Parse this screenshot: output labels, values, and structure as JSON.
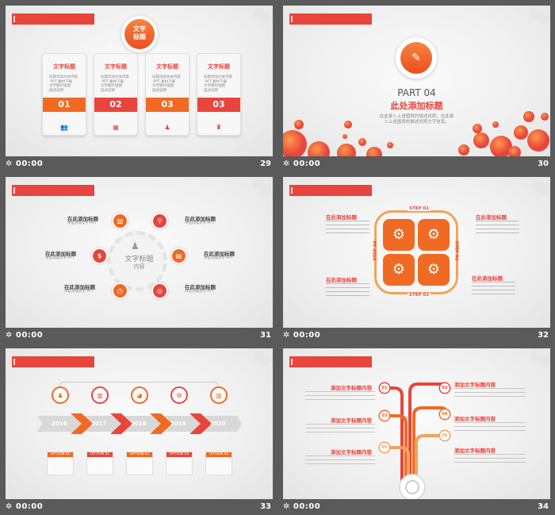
{
  "slides": [
    {
      "number": "29",
      "time": "00:00",
      "center_title": "文字\n标题",
      "cards": [
        {
          "title": "文字标题",
          "desc": "标题添加文本内容\n PPT 素材下载\n文字图片插图\n描述说明",
          "num": "01",
          "color": "#f06a24"
        },
        {
          "title": "文字标题",
          "desc": "标题添加文本内容\n PPT 素材下载\n文字图片插图\n描述说明",
          "num": "02",
          "color": "#e8453c"
        },
        {
          "title": "文字标题",
          "desc": "标题添加文本内容\n PPT 素材下载\n文字图片插图\n描述说明",
          "num": "03",
          "color": "#f06a24"
        },
        {
          "title": "文字标题",
          "desc": "标题添加文本内容\n PPT 素材下载\n文字图片插图\n描述说明",
          "num": "03",
          "color": "#e8453c"
        }
      ]
    },
    {
      "number": "30",
      "time": "00:00",
      "part": "PART 04",
      "heading": "此处添加标题",
      "desc1": "在此录入上述图表的描述说明，在此录",
      "desc2": "入上述图表的描述说明文字信息。"
    },
    {
      "number": "31",
      "time": "00:00",
      "center_title": "文字标题",
      "center_sub": "内容",
      "items": [
        {
          "title": "在此添加标题",
          "desc": "单击添加文字 PPT"
        },
        {
          "title": "在此添加标题",
          "desc": "单击添加文字 PPT"
        },
        {
          "title": "在此添加标题",
          "desc": "单击添加文字 PPT"
        },
        {
          "title": "在此添加标题",
          "desc": "单击添加文字 PPT"
        },
        {
          "title": "在此添加标题",
          "desc": "单击添加文字 PPT"
        },
        {
          "title": "在此添加标题",
          "desc": "单击添加文字 PPT"
        }
      ]
    },
    {
      "number": "32",
      "time": "00:00",
      "steps": [
        "STEP 01",
        "STEP 02",
        "STEP 03",
        "STEP 04"
      ],
      "items": [
        {
          "title": "在此添加标题"
        },
        {
          "title": "在此添加标题"
        },
        {
          "title": "在此添加标题"
        },
        {
          "title": "在此添加标题"
        }
      ]
    },
    {
      "number": "33",
      "time": "00:00",
      "years": [
        "2016",
        "2017",
        "2018",
        "2019",
        "2020"
      ],
      "options": [
        "OPTION 01",
        "OPTION 02",
        "OPTION 03",
        "OPTION 04",
        "OPTION 05"
      ]
    },
    {
      "number": "34",
      "time": "00:00",
      "items": [
        {
          "num": "01",
          "title": "添加文字标题内容"
        },
        {
          "num": "02",
          "title": "添加文字标题内容"
        },
        {
          "num": "03",
          "title": "添加文字标题内容"
        },
        {
          "num": "04",
          "title": "添加文字标题内容"
        },
        {
          "num": "05",
          "title": "添加文字标题内容"
        },
        {
          "num": "06",
          "title": "添加文字标题内容"
        }
      ]
    }
  ],
  "colors": {
    "accent_red": "#e8453c",
    "accent_orange": "#f06a24",
    "background": "#5a5a5a"
  }
}
